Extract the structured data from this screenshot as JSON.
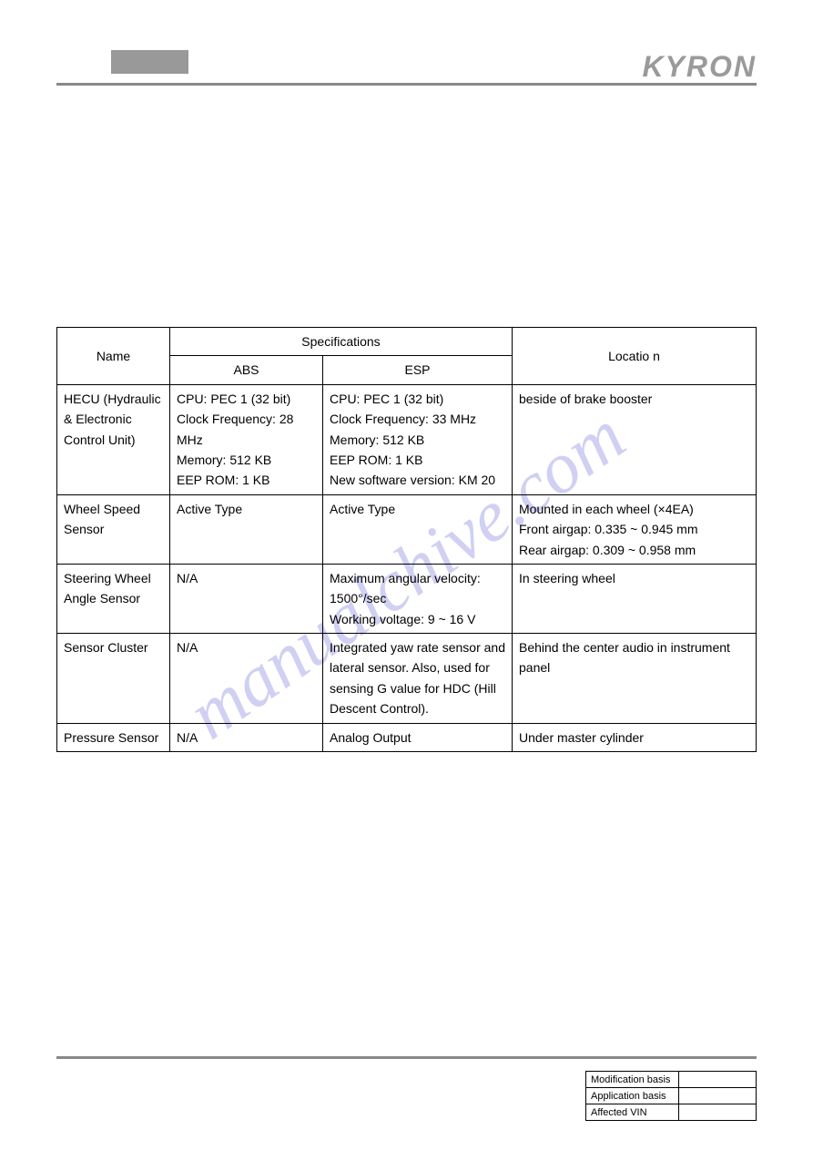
{
  "header": {
    "brand": "KYRON"
  },
  "watermark": "manualchive.com",
  "spec_table": {
    "headers": {
      "name": "Name",
      "specifications": "Specifications",
      "abs": "ABS",
      "esp": "ESP",
      "location": "Locatio n"
    },
    "rows": [
      {
        "name": "HECU (Hydraulic & Electronic Control Unit)",
        "abs": "CPU: PEC 1 (32 bit)\nClock Frequency: 28 MHz\nMemory: 512 KB\nEEP ROM: 1 KB",
        "esp": "CPU: PEC 1 (32 bit)\nClock Frequency: 33 MHz\nMemory: 512 KB\nEEP ROM: 1 KB\nNew software version: KM 20",
        "location": "beside of brake booster"
      },
      {
        "name": "Wheel Speed Sensor",
        "abs": "Active Type",
        "esp": "Active Type",
        "location": "Mounted in each wheel (×4EA)\nFront airgap: 0.335 ~ 0.945 mm\nRear airgap: 0.309 ~ 0.958 mm"
      },
      {
        "name": "Steering Wheel Angle Sensor",
        "abs": "N/A",
        "esp": "Maximum angular velocity: 1500°/sec\nWorking voltage: 9 ~ 16 V",
        "location": "In steering wheel"
      },
      {
        "name": "Sensor Cluster",
        "abs": "N/A",
        "esp": "Integrated yaw rate sensor and lateral sensor. Also, used for sensing G value for HDC (Hill Descent Control).",
        "location": "Behind the center audio in instrument panel"
      },
      {
        "name": "Pressure Sensor",
        "abs": "N/A",
        "esp": "Analog Output",
        "location": "Under master cylinder"
      }
    ]
  },
  "footer_table": {
    "rows": [
      {
        "label": "Modification basis",
        "value": ""
      },
      {
        "label": "Application basis",
        "value": ""
      },
      {
        "label": "Affected VIN",
        "value": ""
      }
    ]
  }
}
